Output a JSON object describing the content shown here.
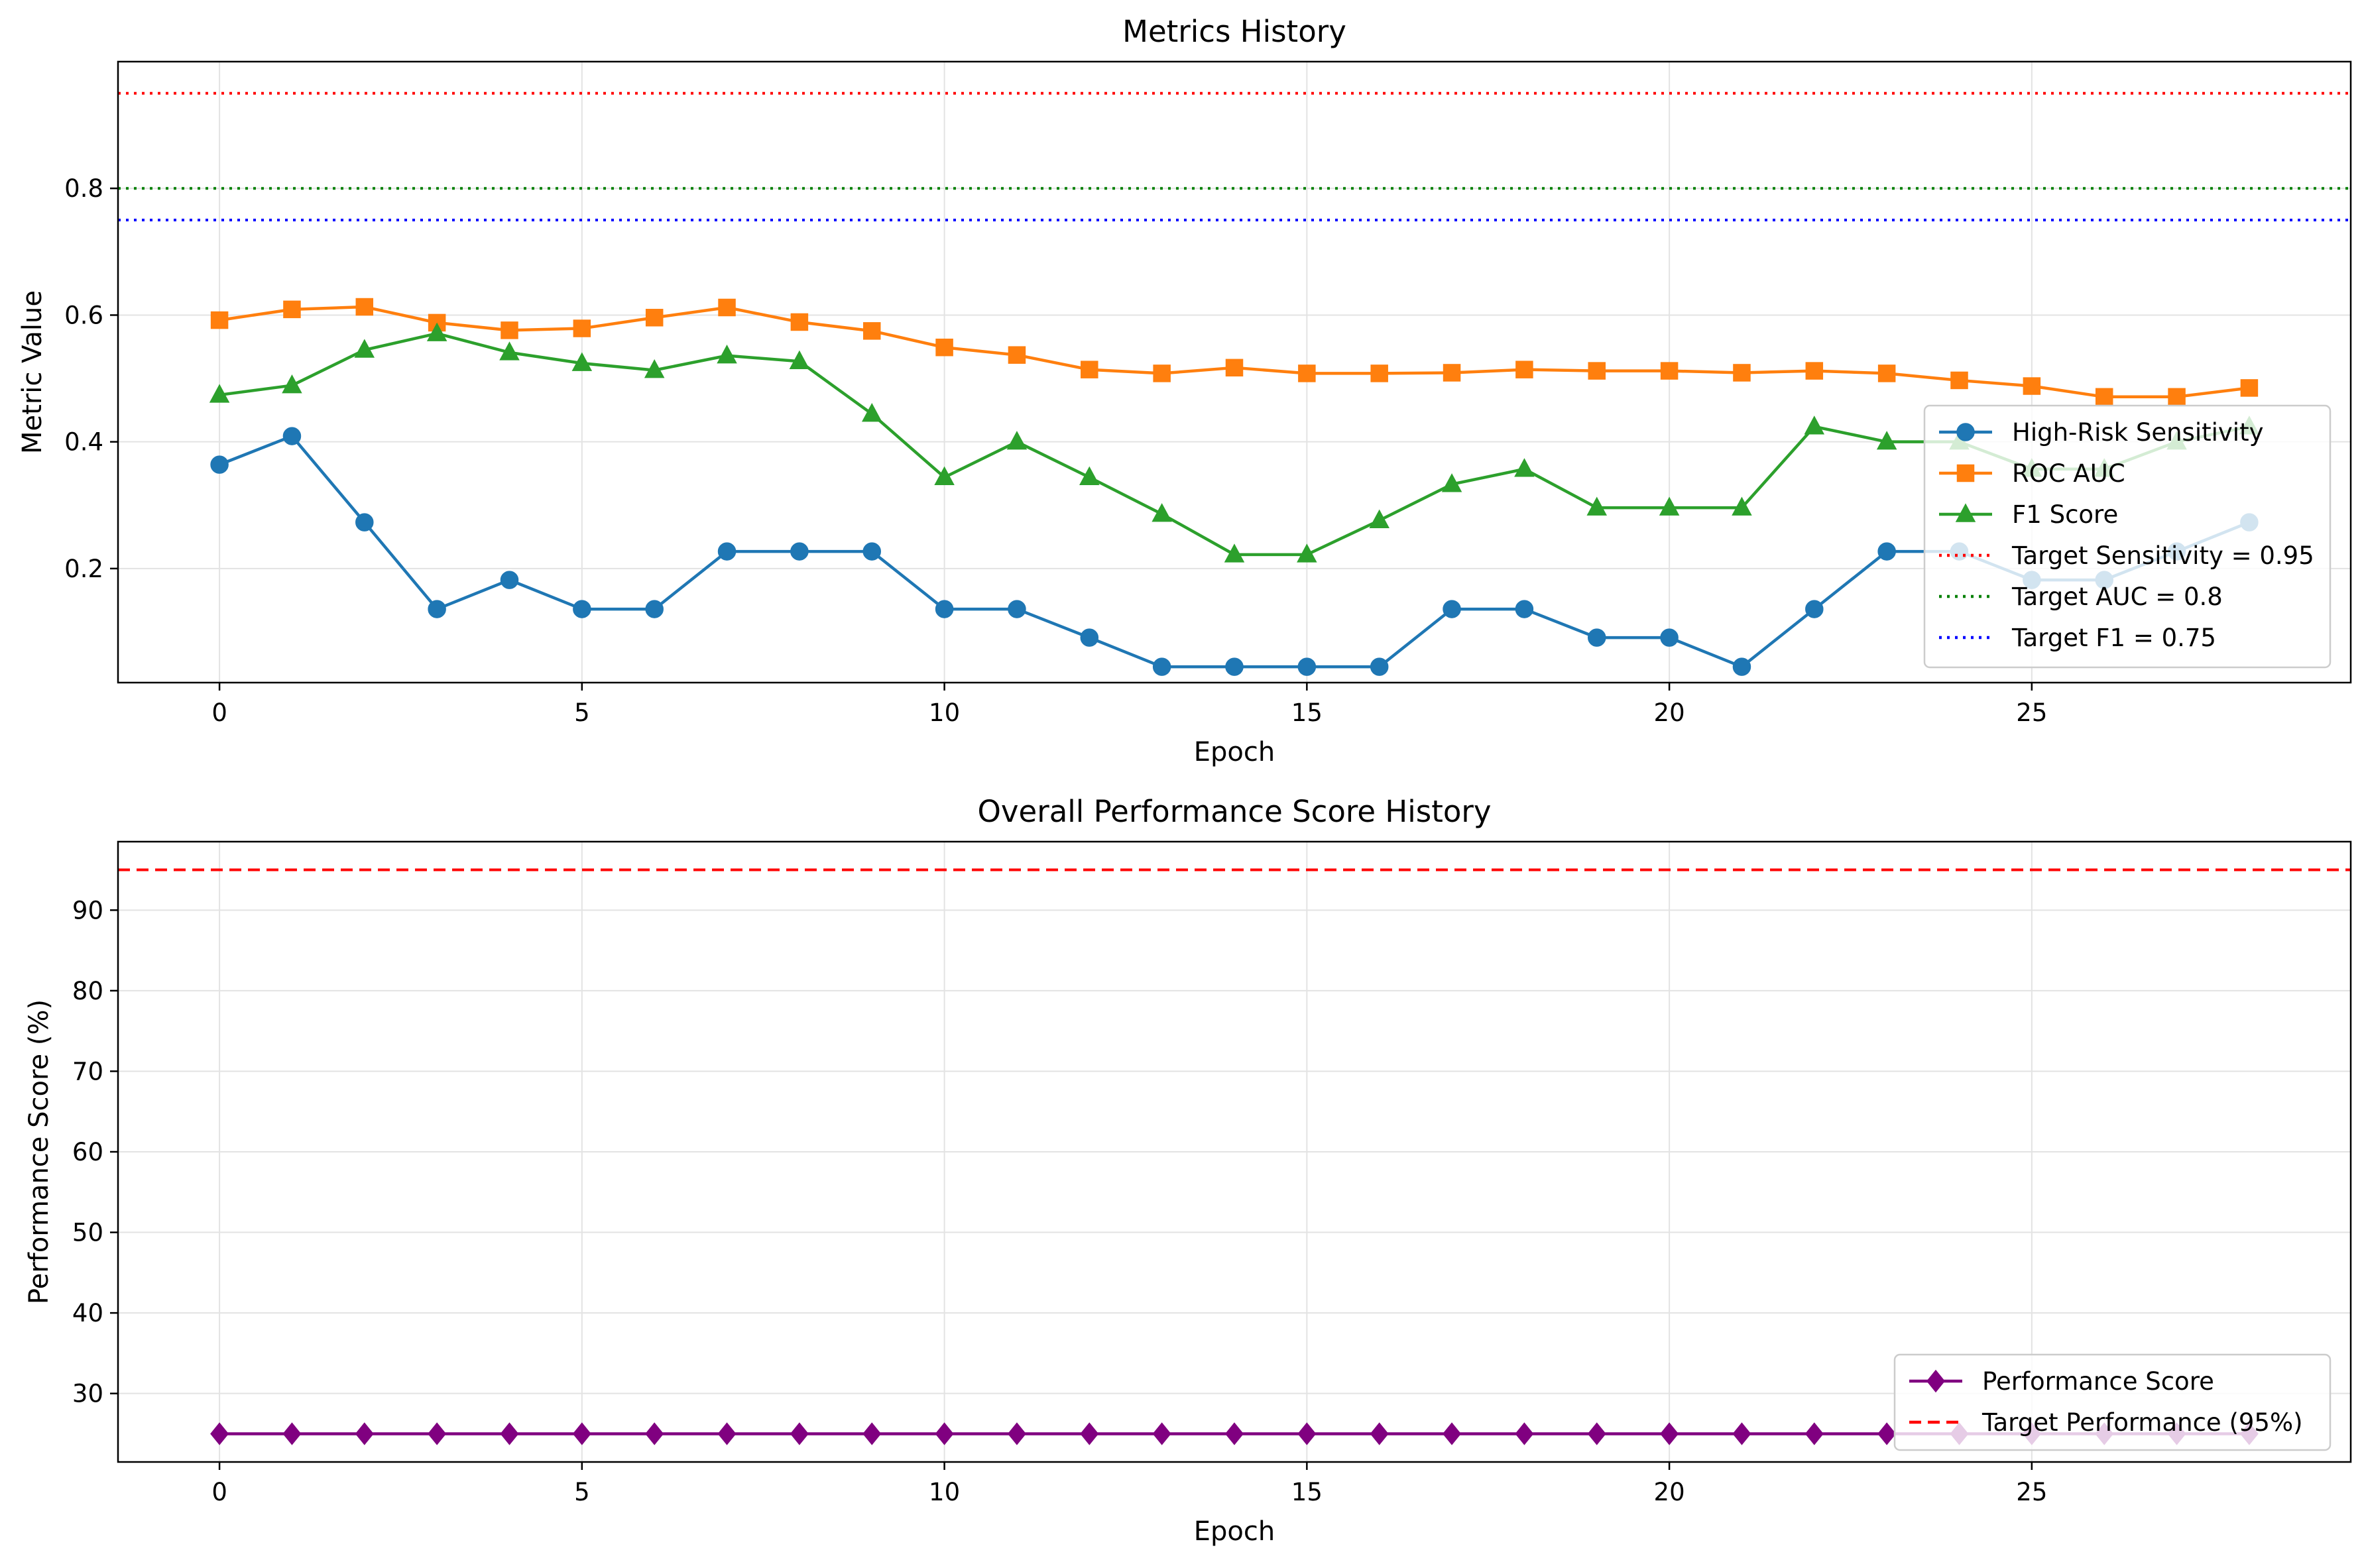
{
  "chart_data": [
    {
      "type": "line",
      "title": "Metrics History",
      "xlabel": "Epoch",
      "ylabel": "Metric Value",
      "xlim": [
        -1.4,
        29.4
      ],
      "ylim": [
        0.02,
        1.0
      ],
      "xticks": [
        0,
        5,
        10,
        15,
        20,
        25
      ],
      "yticks": [
        0.2,
        0.4,
        0.6,
        0.8
      ],
      "grid": true,
      "legend_position": "lower-right",
      "x": [
        0,
        1,
        2,
        3,
        4,
        5,
        6,
        7,
        8,
        9,
        10,
        11,
        12,
        13,
        14,
        15,
        16,
        17,
        18,
        19,
        20,
        21,
        22,
        23,
        24,
        25,
        26,
        27,
        28
      ],
      "series": [
        {
          "name": "High-Risk Sensitivity",
          "color": "#1f77b4",
          "marker": "circle",
          "values": [
            0.364,
            0.409,
            0.273,
            0.136,
            0.182,
            0.136,
            0.136,
            0.227,
            0.227,
            0.227,
            0.136,
            0.136,
            0.091,
            0.045,
            0.045,
            0.045,
            0.045,
            0.136,
            0.136,
            0.091,
            0.091,
            0.045,
            0.136,
            0.227,
            0.227,
            0.182,
            0.182,
            0.227,
            0.273
          ]
        },
        {
          "name": "ROC AUC",
          "color": "#ff7f0e",
          "marker": "square",
          "values": [
            0.592,
            0.609,
            0.613,
            0.588,
            0.576,
            0.579,
            0.596,
            0.612,
            0.589,
            0.575,
            0.549,
            0.537,
            0.514,
            0.508,
            0.517,
            0.508,
            0.508,
            0.509,
            0.514,
            0.512,
            0.512,
            0.509,
            0.512,
            0.508,
            0.497,
            0.488,
            0.471,
            0.471,
            0.485
          ]
        },
        {
          "name": "F1 Score",
          "color": "#2ca02c",
          "marker": "triangle",
          "values": [
            0.474,
            0.489,
            0.545,
            0.571,
            0.541,
            0.524,
            0.513,
            0.536,
            0.527,
            0.444,
            0.344,
            0.4,
            0.344,
            0.286,
            0.222,
            0.222,
            0.276,
            0.333,
            0.357,
            0.296,
            0.296,
            0.296,
            0.424,
            0.4,
            0.4,
            0.357,
            0.357,
            0.4,
            0.424
          ]
        }
      ],
      "reference_lines": [
        {
          "name": "Target Sensitivity = 0.95",
          "y": 0.95,
          "color": "#ff0000",
          "style": "dotted"
        },
        {
          "name": "Target AUC = 0.8",
          "y": 0.8,
          "color": "#008000",
          "style": "dotted"
        },
        {
          "name": "Target F1 = 0.75",
          "y": 0.75,
          "color": "#0000ff",
          "style": "dotted"
        }
      ]
    },
    {
      "type": "line",
      "title": "Overall Performance Score History",
      "xlabel": "Epoch",
      "ylabel": "Performance Score (%)",
      "xlim": [
        -1.4,
        29.4
      ],
      "ylim": [
        21.5,
        98.5
      ],
      "xticks": [
        0,
        5,
        10,
        15,
        20,
        25
      ],
      "yticks": [
        30,
        40,
        50,
        60,
        70,
        80,
        90
      ],
      "grid": true,
      "legend_position": "lower-right",
      "x": [
        0,
        1,
        2,
        3,
        4,
        5,
        6,
        7,
        8,
        9,
        10,
        11,
        12,
        13,
        14,
        15,
        16,
        17,
        18,
        19,
        20,
        21,
        22,
        23,
        24,
        25,
        26,
        27,
        28
      ],
      "series": [
        {
          "name": "Performance Score",
          "color": "#800080",
          "marker": "diamond",
          "values": [
            25,
            25,
            25,
            25,
            25,
            25,
            25,
            25,
            25,
            25,
            25,
            25,
            25,
            25,
            25,
            25,
            25,
            25,
            25,
            25,
            25,
            25,
            25,
            25,
            25,
            25,
            25,
            25,
            25
          ]
        }
      ],
      "reference_lines": [
        {
          "name": "Target Performance (95%)",
          "y": 95,
          "color": "#ff0000",
          "style": "dashed"
        }
      ]
    }
  ]
}
